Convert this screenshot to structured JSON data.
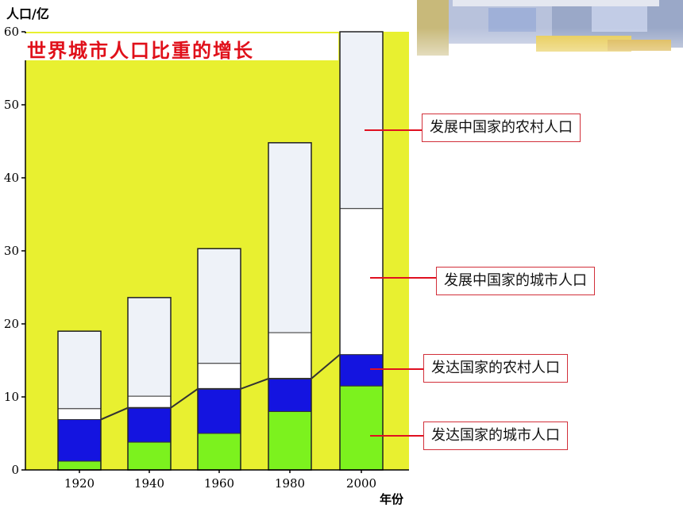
{
  "chart_data": {
    "type": "bar",
    "stacked": true,
    "title": "世界城市人口比重的增长",
    "ylabel": "人口/亿",
    "xlabel": "年份",
    "categories": [
      "1920",
      "1940",
      "1960",
      "1980",
      "2000"
    ],
    "ylim": [
      0,
      60
    ],
    "yticks": [
      "0",
      "10",
      "20",
      "30",
      "40",
      "50",
      "60"
    ],
    "series": [
      {
        "name": "发达国家的城市人口",
        "color": "#7cf21e",
        "values": [
          1.2,
          3.8,
          5.0,
          8.0,
          11.5
        ]
      },
      {
        "name": "发达国家的农村人口",
        "color": "#1414e0",
        "values": [
          5.7,
          4.7,
          6.1,
          4.5,
          4.3
        ]
      },
      {
        "name": "发展中国家的城市人口",
        "color": "#ffffff",
        "values": [
          1.5,
          1.6,
          3.5,
          6.3,
          20.0
        ]
      },
      {
        "name": "发展中国家的农村人口",
        "color": "#eef2f8",
        "values": [
          10.6,
          13.5,
          15.7,
          26.0,
          24.2
        ]
      }
    ],
    "trend_line": [
      6.9,
      8.5,
      11.1,
      12.5,
      15.8
    ],
    "grid": false,
    "background": "#e8f030"
  },
  "legend_order": [
    3,
    2,
    1,
    0
  ]
}
